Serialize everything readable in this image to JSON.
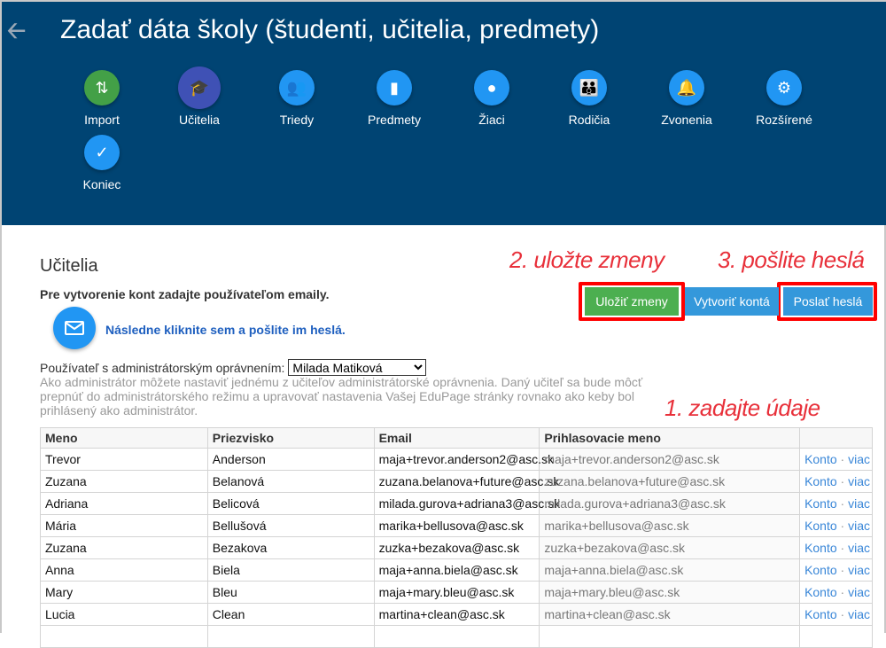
{
  "header": {
    "back_icon": "arrow-left-icon",
    "title": "Zadať dáta školy (študenti, učitelia, predmety)"
  },
  "nav": [
    {
      "label": "Import",
      "icon": "import-export-icon",
      "color": "#43a047"
    },
    {
      "label": "Učitelia",
      "icon": "graduation-cap-icon",
      "color": "#3f51b5",
      "active": true
    },
    {
      "label": "Triedy",
      "icon": "people-icon",
      "color": "#2196f3"
    },
    {
      "label": "Predmety",
      "icon": "book-icon",
      "color": "#2196f3"
    },
    {
      "label": "Žiaci",
      "icon": "person-icon",
      "color": "#2196f3"
    },
    {
      "label": "Rodičia",
      "icon": "parents-icon",
      "color": "#2196f3"
    },
    {
      "label": "Zvonenia",
      "icon": "bell-icon",
      "color": "#2196f3"
    },
    {
      "label": "Rozšírené",
      "icon": "gear-icon",
      "color": "#2196f3"
    },
    {
      "label": "Koniec",
      "icon": "check-icon",
      "color": "#2196f3"
    }
  ],
  "main": {
    "title": "Učitelia",
    "info": "Pre vytvorenie kont zadajte používateľom emaily.",
    "mail_link": "Následne kliknite sem a pošlite im heslá.",
    "admin_label": "Používateľ s administrátorským oprávnením:",
    "admin_selected": "Milada Matiková",
    "admin_help": "Ako administrátor môžete nastaviť jednému z učiteľov administrátorské oprávnenia. Daný učiteľ sa bude môcť prepnúť do administrátorského režimu a upravovať nastavenia Vašej EduPage stránky rovnako ako keby bol prihlásený ako administrátor."
  },
  "buttons": {
    "save": "Uložiť zmeny",
    "create": "Vytvoriť kontá",
    "send": "Poslať heslá"
  },
  "annotations": {
    "step1": "1. zadajte údaje",
    "step2": "2. uložte zmeny",
    "step3": "3. pošlite heslá"
  },
  "table": {
    "headers": [
      "Meno",
      "Priezvisko",
      "Email",
      "Prihlasovacie meno",
      ""
    ],
    "action_konto": "Konto",
    "action_sep": "·",
    "action_viac": "viac",
    "rows": [
      [
        "Trevor",
        "Anderson",
        "maja+trevor.anderson2@asc.sk",
        "maja+trevor.anderson2@asc.sk"
      ],
      [
        "Zuzana",
        "Belanová",
        "zuzana.belanova+future@asc.sk",
        "zuzana.belanova+future@asc.sk"
      ],
      [
        "Adriana",
        "Belicová",
        "milada.gurova+adriana3@asc.sk",
        "milada.gurova+adriana3@asc.sk"
      ],
      [
        "Mária",
        "Bellušová",
        "marika+bellusova@asc.sk",
        "marika+bellusova@asc.sk"
      ],
      [
        "Zuzana",
        "Bezakova",
        "zuzka+bezakova@asc.sk",
        "zuzka+bezakova@asc.sk"
      ],
      [
        "Anna",
        "Biela",
        "maja+anna.biela@asc.sk",
        "maja+anna.biela@asc.sk"
      ],
      [
        "Mary",
        "Bleu",
        "maja+mary.bleu@asc.sk",
        "maja+mary.bleu@asc.sk"
      ],
      [
        "Lucia",
        "Clean",
        "martina+clean@asc.sk",
        "martina+clean@asc.sk"
      ]
    ]
  }
}
